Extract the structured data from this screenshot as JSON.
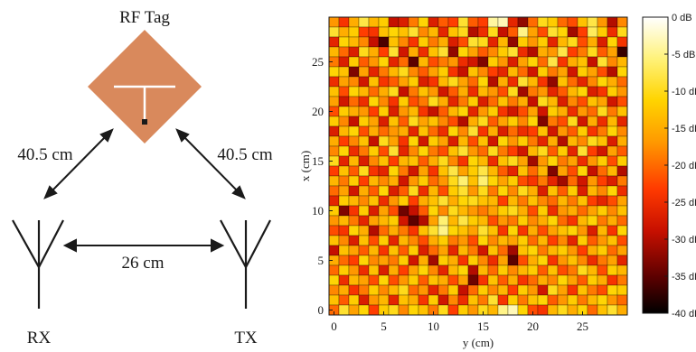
{
  "diagram": {
    "tag_label": "RF Tag",
    "rx_label": "RX",
    "tx_label": "TX",
    "dist_tag_rx": "40.5 cm",
    "dist_tag_tx": "40.5 cm",
    "dist_rx_tx": "26 cm",
    "tag_color": "#d9895c",
    "line_color": "#1a1a1a"
  },
  "chart_data": {
    "type": "heatmap",
    "xlabel": "y (cm)",
    "ylabel": "x (cm)",
    "x_ticks": [
      "0",
      "5",
      "10",
      "15",
      "20",
      "25"
    ],
    "y_ticks": [
      "0",
      "5",
      "10",
      "15",
      "20",
      "25"
    ],
    "x_range": [
      0,
      29
    ],
    "y_range": [
      0,
      29
    ],
    "grid_size": 30,
    "colorbar_label_ticks": [
      "0 dB",
      "-5 dB",
      "-10 dB",
      "-15 dB",
      "-20 dB",
      "-25 dB",
      "-30 dB",
      "-35 dB",
      "-40 dB"
    ],
    "colorbar_range_db": [
      -40,
      0
    ],
    "colormap": "hot",
    "values_db": [
      [
        -17,
        -24,
        -15,
        -8,
        -14,
        -12,
        -29,
        -27,
        -19,
        -11,
        -27,
        -21,
        -23,
        -9,
        -21,
        -23,
        -4,
        -3,
        -26,
        -32,
        -20,
        -10,
        -12,
        -20,
        -22,
        -13,
        -8,
        -17,
        -30,
        -18
      ],
      [
        -9,
        -15,
        -12,
        -23,
        -24,
        -13,
        -11,
        -13,
        -9,
        -18,
        -14,
        -26,
        -13,
        -10,
        -30,
        -25,
        -10,
        -29,
        -21,
        -5,
        -16,
        -22,
        -9,
        -11,
        -31,
        -23,
        -7,
        -12,
        -25,
        -10
      ],
      [
        -26,
        -11,
        -14,
        -18,
        -29,
        -36,
        -13,
        -18,
        -24,
        -12,
        -19,
        -15,
        -27,
        -22,
        -9,
        -10,
        -26,
        -14,
        -32,
        -12,
        -17,
        -12,
        -26,
        -14,
        -10,
        -22,
        -15,
        -27,
        -11,
        -24
      ],
      [
        -14,
        -20,
        -27,
        -10,
        -15,
        -23,
        -9,
        -28,
        -15,
        -25,
        -13,
        -9,
        -32,
        -11,
        -16,
        -21,
        -18,
        -12,
        -9,
        -25,
        -30,
        -15,
        -17,
        -8,
        -23,
        -19,
        -10,
        -21,
        -16,
        -37
      ],
      [
        -19,
        -27,
        -12,
        -21,
        -17,
        -11,
        -26,
        -20,
        -35,
        -14,
        -22,
        -19,
        -17,
        -25,
        -28,
        -33,
        -12,
        -17,
        -27,
        -16,
        -11,
        -20,
        -8,
        -24,
        -15,
        -13,
        -29,
        -9,
        -18,
        -14
      ],
      [
        -11,
        -13,
        -33,
        -16,
        -26,
        -19,
        -14,
        -10,
        -18,
        -21,
        -16,
        -12,
        -24,
        -29,
        -13,
        -18,
        -23,
        -26,
        -14,
        -20,
        -28,
        -12,
        -19,
        -16,
        -28,
        -12,
        -16,
        -22,
        -30,
        -11
      ],
      [
        -25,
        -16,
        -18,
        -28,
        -13,
        -24,
        -21,
        -16,
        -12,
        -27,
        -24,
        -14,
        -10,
        -16,
        -20,
        -11,
        -30,
        -15,
        -25,
        -9,
        -14,
        -24,
        -32,
        -13,
        -20,
        -26,
        -18,
        -11,
        -15,
        -20
      ],
      [
        -13,
        -22,
        -11,
        -14,
        -20,
        -15,
        -10,
        -29,
        -19,
        -13,
        -17,
        -28,
        -21,
        -15,
        -25,
        -14,
        -17,
        -22,
        -10,
        -31,
        -19,
        -17,
        -26,
        -21,
        -14,
        -11,
        -27,
        -24,
        -12,
        -17
      ],
      [
        -16,
        -28,
        -20,
        -25,
        -11,
        -18,
        -24,
        -12,
        -22,
        -19,
        -10,
        -15,
        -26,
        -19,
        -12,
        -27,
        -20,
        -13,
        -19,
        -15,
        -29,
        -10,
        -14,
        -27,
        -18,
        -22,
        -13,
        -16,
        -28,
        -22
      ],
      [
        -22,
        -12,
        -15,
        -17,
        -23,
        -12,
        -27,
        -17,
        -14,
        -24,
        -29,
        -21,
        -14,
        -11,
        -26,
        -17,
        -12,
        -24,
        -28,
        -22,
        -16,
        -28,
        -12,
        -15,
        -25,
        -17,
        -20,
        -10,
        -19,
        -13
      ],
      [
        -12,
        -18,
        -29,
        -12,
        -16,
        -27,
        -13,
        -21,
        -10,
        -16,
        -13,
        -18,
        -22,
        -30,
        -15,
        -10,
        -21,
        -16,
        -12,
        -18,
        -11,
        -33,
        -19,
        -22,
        -10,
        -28,
        -15,
        -25,
        -14,
        -26
      ],
      [
        -27,
        -14,
        -11,
        -22,
        -15,
        -20,
        -17,
        -15,
        -26,
        -13,
        -20,
        -25,
        -11,
        -18,
        -9,
        -24,
        -15,
        -27,
        -20,
        -25,
        -23,
        -13,
        -28,
        -17,
        -21,
        -12,
        -24,
        -19,
        -11,
        -18
      ],
      [
        -15,
        -23,
        -18,
        -13,
        -29,
        -10,
        -16,
        -24,
        -11,
        -28,
        -12,
        -16,
        -27,
        -14,
        -22,
        -13,
        -28,
        -11,
        -17,
        -12,
        -19,
        -26,
        -15,
        -30,
        -14,
        -18,
        -10,
        -13,
        -27,
        -15
      ],
      [
        -18,
        -11,
        -25,
        -19,
        -12,
        -22,
        -9,
        -26,
        -18,
        -11,
        -19,
        -22,
        -13,
        -9,
        -17,
        -20,
        -10,
        -19,
        -23,
        -28,
        -14,
        -10,
        -21,
        -12,
        -26,
        -9,
        -23,
        -28,
        -16,
        -21
      ],
      [
        -10,
        -26,
        -14,
        -27,
        -18,
        -13,
        -23,
        -14,
        -13,
        -21,
        -15,
        -10,
        -18,
        -24,
        -11,
        -14,
        -25,
        -13,
        -10,
        -16,
        -31,
        -17,
        -11,
        -19,
        -16,
        -25,
        -17,
        -12,
        -22,
        -12
      ],
      [
        -23,
        -13,
        -21,
        -10,
        -24,
        -26,
        -11,
        -19,
        -28,
        -16,
        -24,
        -13,
        -8,
        -16,
        -12,
        -8,
        -14,
        -21,
        -26,
        -13,
        -20,
        -14,
        -33,
        -16,
        -22,
        -11,
        -29,
        -20,
        -14,
        -30
      ],
      [
        -14,
        -19,
        -12,
        -23,
        -14,
        -18,
        -15,
        -28,
        -17,
        -12,
        -20,
        -17,
        -10,
        -6,
        -13,
        -6,
        -11,
        -16,
        -12,
        -22,
        -24,
        -19,
        -26,
        -31,
        -20,
        -28,
        -17,
        -23,
        -27,
        -19
      ],
      [
        -20,
        -16,
        -28,
        -15,
        -21,
        -11,
        -27,
        -21,
        -10,
        -25,
        -14,
        -22,
        -12,
        -9,
        -17,
        -10,
        -19,
        -11,
        -18,
        -10,
        -15,
        -27,
        -13,
        -21,
        -12,
        -27,
        -14,
        -18,
        -11,
        -25
      ],
      [
        -26,
        -12,
        -14,
        -18,
        -13,
        -25,
        -17,
        -12,
        -23,
        -15,
        -13,
        -9,
        -15,
        -11,
        -10,
        -13,
        -14,
        -23,
        -14,
        -19,
        -13,
        -18,
        -20,
        -14,
        -19,
        -13,
        -23,
        -26,
        -22,
        -16
      ],
      [
        -12,
        -33,
        -24,
        -12,
        -27,
        -16,
        -22,
        -34,
        -29,
        -21,
        -11,
        -18,
        -10,
        -14,
        -17,
        -19,
        -16,
        -12,
        -10,
        -15,
        -22,
        -12,
        -25,
        -17,
        -15,
        -20,
        -16,
        -12,
        -18,
        -13
      ],
      [
        -17,
        -14,
        -19,
        -26,
        -16,
        -14,
        -12,
        -28,
        -35,
        -30,
        -16,
        -6,
        -14,
        -8,
        -12,
        -14,
        -22,
        -17,
        -19,
        -12,
        -18,
        -15,
        -11,
        -20,
        -24,
        -14,
        -11,
        -19,
        -15,
        -20
      ],
      [
        -22,
        -24,
        -11,
        -15,
        -30,
        -20,
        -15,
        -19,
        -24,
        -13,
        -9,
        -5,
        -11,
        -13,
        -16,
        -9,
        -13,
        -24,
        -11,
        -24,
        -15,
        -22,
        -16,
        -13,
        -11,
        -17,
        -27,
        -14,
        -24,
        -11
      ],
      [
        -13,
        -18,
        -27,
        -13,
        -22,
        -12,
        -26,
        -14,
        -18,
        -22,
        -15,
        -12,
        -19,
        -17,
        -22,
        -11,
        -18,
        -14,
        -16,
        -12,
        -20,
        -14,
        -23,
        -18,
        -26,
        -12,
        -21,
        -17,
        -13,
        -22
      ],
      [
        -29,
        -13,
        -16,
        -21,
        -14,
        -24,
        -13,
        -21,
        -12,
        -27,
        -20,
        -16,
        -26,
        -14,
        -19,
        -28,
        -13,
        -20,
        -31,
        -13,
        -11,
        -19,
        -14,
        -12,
        -17,
        -23,
        -15,
        -12,
        -20,
        -16
      ],
      [
        -15,
        -20,
        -23,
        -11,
        -18,
        -16,
        -19,
        -12,
        -28,
        -15,
        -31,
        -12,
        -15,
        -24,
        -12,
        -18,
        -25,
        -16,
        -35,
        -22,
        -15,
        -11,
        -24,
        -17,
        -13,
        -18,
        -25,
        -19,
        -16,
        -26
      ],
      [
        -20,
        -12,
        -17,
        -25,
        -13,
        -27,
        -15,
        -23,
        -16,
        -11,
        -18,
        -26,
        -14,
        -11,
        -30,
        -14,
        -20,
        -12,
        -18,
        -14,
        -12,
        -21,
        -13,
        -22,
        -19,
        -10,
        -14,
        -22,
        -12,
        -14
      ],
      [
        -11,
        -25,
        -14,
        -16,
        -22,
        -11,
        -22,
        -17,
        -12,
        -21,
        -13,
        -15,
        -22,
        -16,
        -34,
        -24,
        -13,
        -21,
        -15,
        -24,
        -20,
        -15,
        -18,
        -11,
        -16,
        -21,
        -12,
        -15,
        -24,
        -19
      ],
      [
        -18,
        -15,
        -24,
        -19,
        -12,
        -18,
        -14,
        -10,
        -20,
        -17,
        -26,
        -19,
        -12,
        -29,
        -20,
        -12,
        -18,
        -14,
        -23,
        -12,
        -17,
        -28,
        -10,
        -16,
        -24,
        -13,
        -19,
        -22,
        -11,
        -12
      ],
      [
        -13,
        -21,
        -12,
        -27,
        -17,
        -14,
        -26,
        -13,
        -15,
        -24,
        -12,
        -28,
        -18,
        -25,
        -13,
        -19,
        -9,
        -24,
        -12,
        -19,
        -13,
        -11,
        -21,
        -17,
        -12,
        -19,
        -14,
        -11,
        -17,
        -20
      ],
      [
        -20,
        -9,
        -16,
        -11,
        -23,
        -12,
        -10,
        -18,
        -11,
        -13,
        -19,
        -10,
        -23,
        -12,
        -17,
        -10,
        -14,
        -5,
        -3,
        -11,
        -22,
        -24,
        -14,
        -10,
        -15,
        -11,
        -20,
        -13,
        -9,
        -15
      ]
    ]
  }
}
